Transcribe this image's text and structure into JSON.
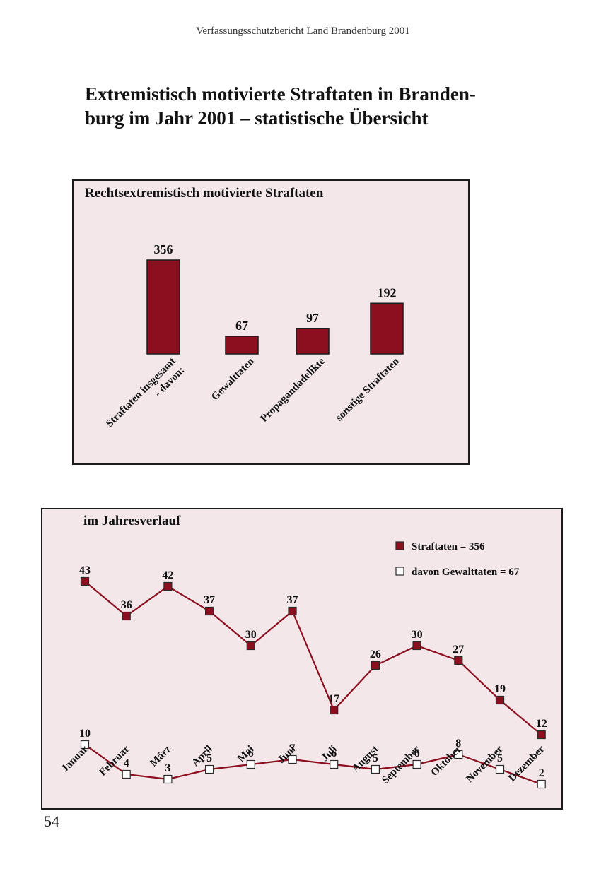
{
  "page": {
    "running_head": "Verfassungsschutzbericht Land Brandenburg 2001",
    "title_line1": "Extremistisch motivierte Straftaten in Branden-",
    "title_line2": "burg im Jahr 2001 – statistische Übersicht",
    "page_number": "54"
  },
  "colors": {
    "accent": "#8b0f1f",
    "chart_background": "#f3e7ea",
    "open_marker": "#ffffff"
  },
  "chart_data": [
    {
      "type": "bar",
      "title": "Rechtsextremistisch motivierte Straftaten",
      "categories": [
        "Straftaten insgesamt\n- davon:",
        "Gewalttaten",
        "Propagandadelikte",
        "sonstige Straftaten"
      ],
      "values": [
        356,
        67,
        97,
        192
      ],
      "data_labels": [
        "356",
        "67",
        "97",
        "192"
      ],
      "ylim": [
        0,
        400
      ],
      "grid": false,
      "legend": "none",
      "bar_color": "#8b0f1f"
    },
    {
      "type": "line",
      "title": "im Jahresverlauf",
      "categories": [
        "Januar",
        "Februar",
        "März",
        "April",
        "Mai",
        "Juni",
        "Juli",
        "August",
        "September",
        "Oktober",
        "November",
        "Dezember"
      ],
      "ylim": [
        0,
        45
      ],
      "grid": false,
      "legend": "top-right",
      "series": [
        {
          "name": "Straftaten = 356",
          "values": [
            43,
            36,
            42,
            37,
            30,
            37,
            17,
            26,
            30,
            27,
            19,
            12
          ],
          "marker": "filled-square",
          "color": "#8b0f1f"
        },
        {
          "name": "davon Gewalttaten = 67",
          "values": [
            10,
            4,
            3,
            5,
            6,
            7,
            6,
            5,
            6,
            8,
            5,
            2
          ],
          "marker": "open-square",
          "color": "#8b0f1f"
        }
      ]
    }
  ]
}
